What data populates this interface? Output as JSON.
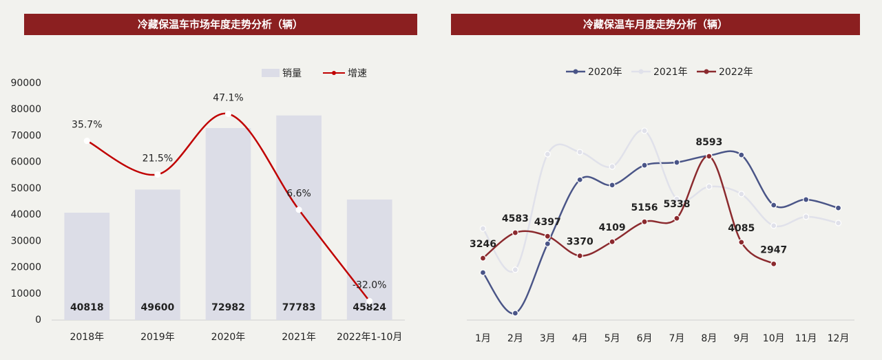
{
  "chart_data": [
    {
      "type": "bar",
      "title": "冷藏保温车市场年度走势分析（辆）",
      "categories": [
        "2018年",
        "2019年",
        "2020年",
        "2021年",
        "2022年1-10月"
      ],
      "series": [
        {
          "name": "销量",
          "color": "#dcdde7",
          "values": [
            40818,
            49600,
            72982,
            77783,
            45824
          ]
        },
        {
          "name": "增速",
          "color": "#c00000",
          "axis": "y2",
          "values": [
            35.7,
            21.5,
            47.1,
            6.6,
            -32.0
          ],
          "value_labels": [
            "35.7%",
            "21.5%",
            "47.1%",
            "6.6%",
            "-32.0%"
          ]
        }
      ],
      "ylim": [
        0,
        90000
      ],
      "yticks": [
        0,
        10000,
        20000,
        30000,
        40000,
        50000,
        60000,
        70000,
        80000,
        90000
      ],
      "y2lim": [
        -40,
        60
      ],
      "legend": "top"
    },
    {
      "type": "line",
      "title": "冷藏保温车月度走势分析（辆）",
      "categories": [
        "1月",
        "2月",
        "3月",
        "4月",
        "5月",
        "6月",
        "7月",
        "8月",
        "9月",
        "10月",
        "11月",
        "12月"
      ],
      "series": [
        {
          "name": "2020年",
          "color": "#4a5587",
          "values": [
            2490,
            360,
            4000,
            7360,
            7080,
            8120,
            8270,
            8630,
            8660,
            6030,
            6320,
            5880
          ]
        },
        {
          "name": "2021年",
          "color": "#e0e1ea",
          "values": [
            4800,
            2640,
            8700,
            8810,
            8050,
            9930,
            6350,
            7000,
            6610,
            4950,
            5420,
            5090
          ]
        },
        {
          "name": "2022年",
          "color": "#8b2a2e",
          "data_labels": true,
          "values": [
            3246,
            4583,
            4397,
            3370,
            4109,
            5156,
            5338,
            8593,
            4085,
            2947,
            null,
            null
          ]
        }
      ],
      "ylim": [
        0,
        10000
      ],
      "legend": "top"
    }
  ]
}
